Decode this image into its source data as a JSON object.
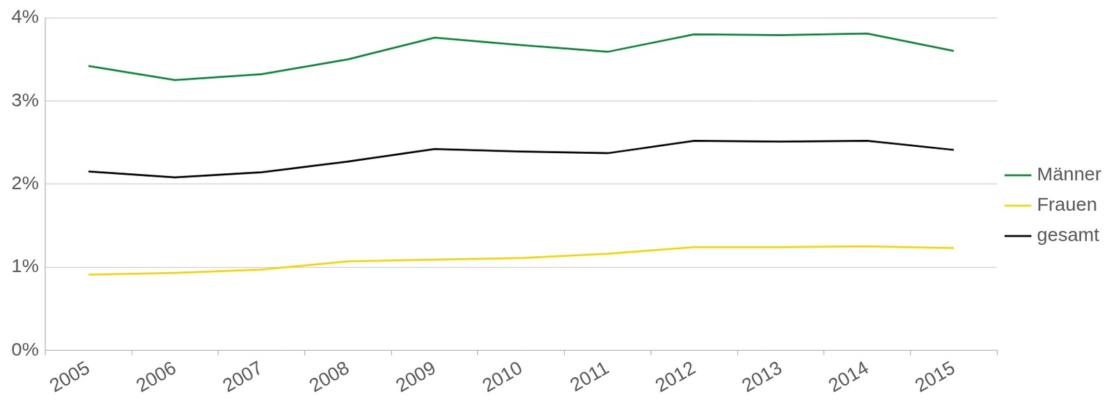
{
  "chart_data": {
    "type": "line",
    "categories": [
      "2005",
      "2006",
      "2007",
      "2008",
      "2009",
      "2010",
      "2011",
      "2012",
      "2013",
      "2014",
      "2015"
    ],
    "series": [
      {
        "name": "Männer",
        "color": "#12873f",
        "values": [
          3.42,
          3.25,
          3.32,
          3.5,
          3.76,
          3.67,
          3.59,
          3.8,
          3.79,
          3.81,
          3.6
        ]
      },
      {
        "name": "Frauen",
        "color": "#f5d50a",
        "values": [
          0.91,
          0.93,
          0.97,
          1.07,
          1.09,
          1.11,
          1.16,
          1.24,
          1.24,
          1.25,
          1.23
        ]
      },
      {
        "name": "gesamt",
        "color": "#000000",
        "values": [
          2.15,
          2.08,
          2.14,
          2.27,
          2.42,
          2.39,
          2.37,
          2.52,
          2.51,
          2.52,
          2.41
        ]
      }
    ],
    "ylim": [
      0,
      4
    ],
    "yticks": [
      {
        "value": 0,
        "label": "0%"
      },
      {
        "value": 1,
        "label": "1%"
      },
      {
        "value": 2,
        "label": "2%"
      },
      {
        "value": 3,
        "label": "3%"
      },
      {
        "value": 4,
        "label": "4%"
      }
    ],
    "grid": true,
    "legend": "right"
  }
}
